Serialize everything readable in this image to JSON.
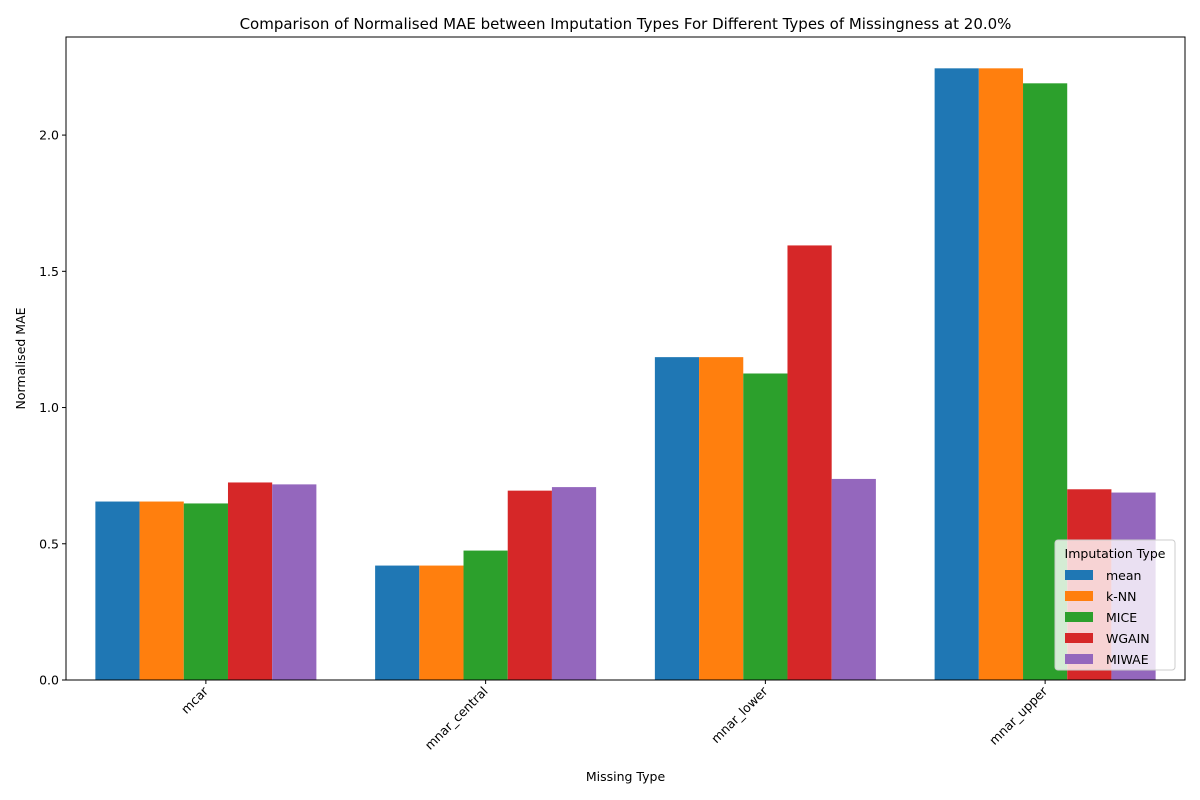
{
  "chart_data": {
    "type": "bar",
    "title": "Comparison of Normalised MAE between Imputation Types For Different Types of Missingness at 20.0%",
    "xlabel": "Missing Type",
    "ylabel": "Normalised MAE",
    "categories": [
      "mcar",
      "mnar_central",
      "mnar_lower",
      "mnar_upper"
    ],
    "ylim": [
      0,
      2.36
    ],
    "yticks": [
      "0.0",
      "0.5",
      "1.0",
      "1.5",
      "2.0"
    ],
    "grid": false,
    "legend": {
      "title": "Imputation Type",
      "placement": "lower-right"
    },
    "series": [
      {
        "name": "mean",
        "color": "#1f77b4",
        "values": [
          0.655,
          0.42,
          1.185,
          2.245
        ]
      },
      {
        "name": "k-NN",
        "color": "#ff7f0e",
        "values": [
          0.655,
          0.42,
          1.185,
          2.245
        ]
      },
      {
        "name": "MICE",
        "color": "#2ca02c",
        "values": [
          0.648,
          0.475,
          1.125,
          2.19
        ]
      },
      {
        "name": "WGAIN",
        "color": "#d62728",
        "values": [
          0.725,
          0.695,
          1.595,
          0.7
        ]
      },
      {
        "name": "MIWAE",
        "color": "#9467bd",
        "values": [
          0.718,
          0.708,
          0.738,
          0.688
        ]
      }
    ]
  }
}
